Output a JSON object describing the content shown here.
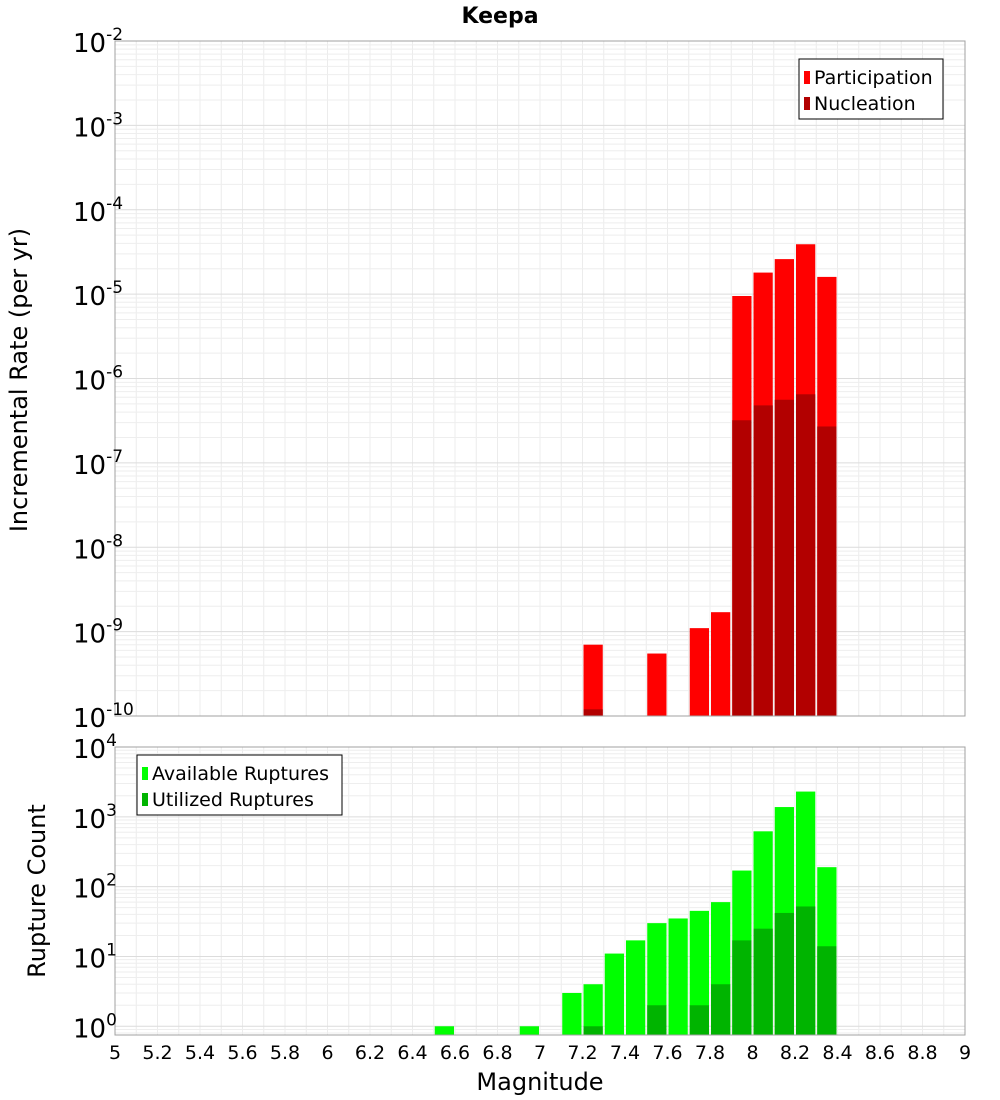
{
  "chart_data": [
    {
      "type": "bar",
      "title": "Keepa",
      "ylabel": "Incremental Rate (per yr)",
      "y_scale": "log",
      "ylim": [
        1e-10,
        0.01
      ],
      "xlim": [
        5,
        9
      ],
      "bin_width": 0.1,
      "grid": true,
      "legend_position": "top-right",
      "y_tick_exponents": [
        "-2",
        "-3",
        "-4",
        "-5",
        "-6",
        "-7",
        "-8",
        "-9",
        "-10"
      ],
      "y_tick_base": "10",
      "x": [
        7.25,
        7.55,
        7.75,
        7.85,
        7.95,
        8.05,
        8.15,
        8.25,
        8.35
      ],
      "series": [
        {
          "name": "Participation",
          "color": "#ff0000",
          "values": [
            7e-10,
            5.5e-10,
            1.1e-09,
            1.7e-09,
            9.5e-06,
            1.8e-05,
            2.6e-05,
            3.9e-05,
            1.6e-05
          ]
        },
        {
          "name": "Nucleation",
          "color": "#b20000",
          "values": [
            1.2e-10,
            null,
            null,
            null,
            3.2e-07,
            4.8e-07,
            5.6e-07,
            6.5e-07,
            2.7e-07
          ]
        }
      ]
    },
    {
      "type": "bar",
      "xlabel": "Magnitude",
      "ylabel": "Rupture Count",
      "y_scale": "log",
      "ylim": [
        0.75,
        10000
      ],
      "xlim": [
        5,
        9
      ],
      "bin_width": 0.1,
      "grid": true,
      "legend_position": "top-left",
      "y_tick_exponents": [
        "4",
        "3",
        "2",
        "1",
        "0"
      ],
      "y_tick_base": "10",
      "x_tick_labels": [
        "5",
        "5.2",
        "5.4",
        "5.6",
        "5.8",
        "6",
        "6.2",
        "6.4",
        "6.6",
        "6.8",
        "7",
        "7.2",
        "7.4",
        "7.6",
        "7.8",
        "8",
        "8.2",
        "8.4",
        "8.6",
        "8.8",
        "9"
      ],
      "x": [
        6.55,
        6.95,
        7.15,
        7.25,
        7.35,
        7.45,
        7.55,
        7.65,
        7.75,
        7.85,
        7.95,
        8.05,
        8.15,
        8.25,
        8.35
      ],
      "series": [
        {
          "name": "Available Ruptures",
          "color": "#00ff00",
          "values": [
            1,
            1,
            3,
            4,
            11,
            17,
            30,
            35,
            45,
            60,
            170,
            620,
            1380,
            2300,
            190
          ]
        },
        {
          "name": "Utilized Ruptures",
          "color": "#00b400",
          "values": [
            null,
            null,
            null,
            1,
            null,
            null,
            2,
            null,
            2,
            4,
            17,
            25,
            42,
            52,
            14
          ]
        }
      ]
    }
  ]
}
